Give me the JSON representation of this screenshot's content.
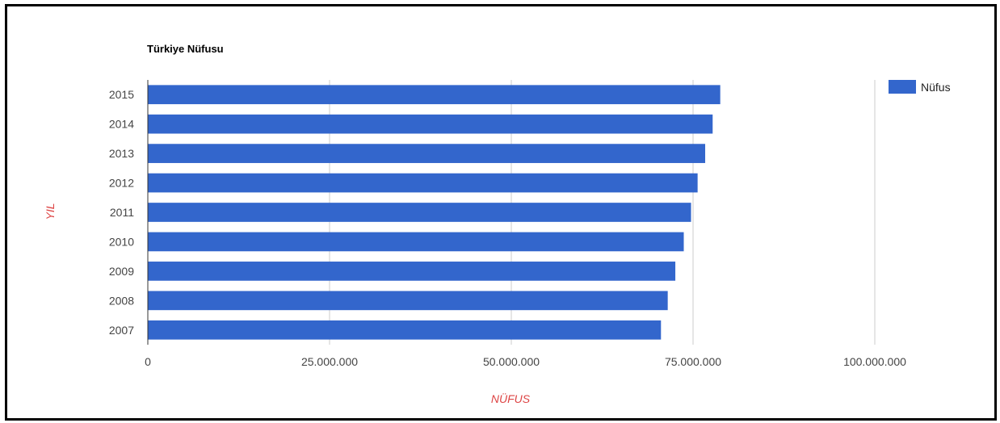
{
  "colors": {
    "bar": "#3366cc",
    "axis_title": "#dd4444",
    "grid": "#cccccc",
    "baseline": "#333333"
  },
  "chart_data": {
    "type": "bar",
    "orientation": "horizontal",
    "title": "Türkiye Nüfusu",
    "xlabel": "NÜFUS",
    "ylabel": "YIL",
    "categories": [
      "2015",
      "2014",
      "2013",
      "2012",
      "2011",
      "2010",
      "2009",
      "2008",
      "2007"
    ],
    "series": [
      {
        "name": "Nüfus",
        "values": [
          78741053,
          77695904,
          76667864,
          75627384,
          74724269,
          73722988,
          72561312,
          71517100,
          70586256
        ]
      }
    ],
    "xlim": [
      0,
      100000000
    ],
    "xticks": [
      0,
      25000000,
      50000000,
      75000000,
      100000000
    ],
    "xtick_labels": [
      "0",
      "25.000.000",
      "50.000.000",
      "75.000.000",
      "100.000.000"
    ],
    "grid": true,
    "legend": "top-right"
  }
}
